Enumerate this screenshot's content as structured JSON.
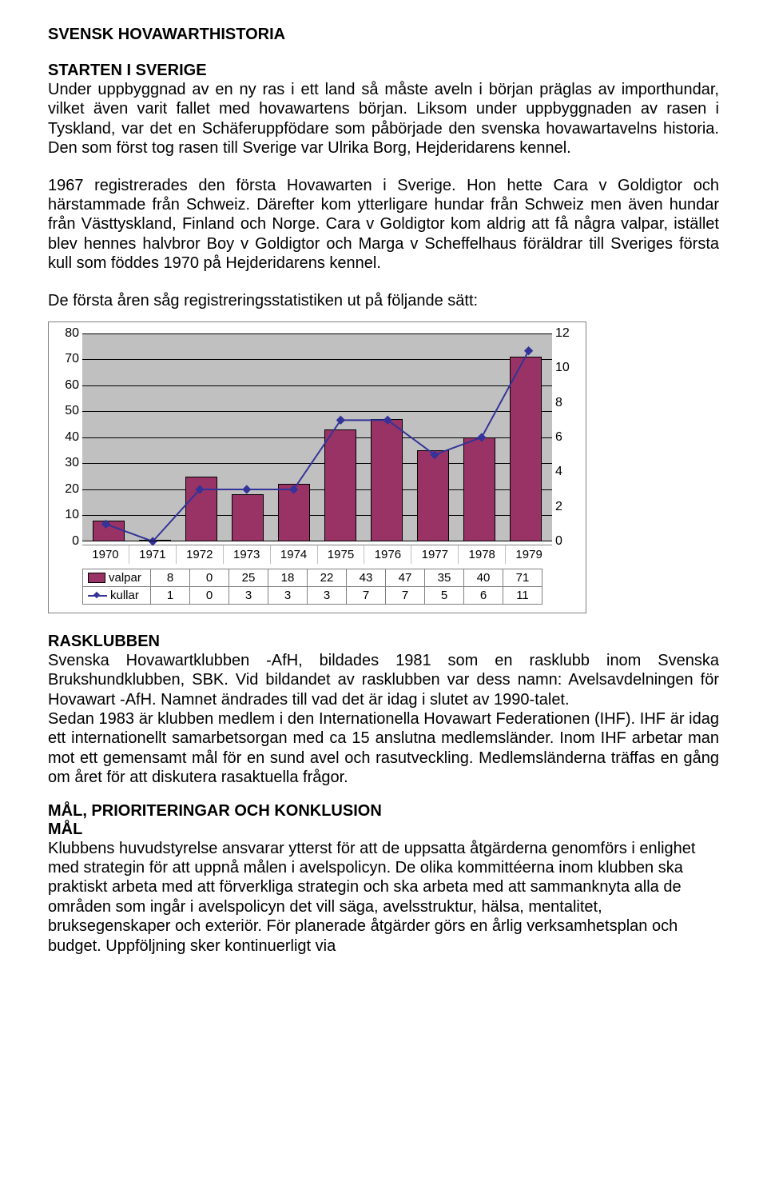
{
  "title": "SVENSK HOVAWARTHISTORIA",
  "section1": {
    "heading": "STARTEN I SVERIGE",
    "para1": "Under uppbyggnad av en ny ras i ett land så måste aveln i början präglas av importhundar, vilket även varit fallet med hovawartens början. Liksom under uppbyggnaden av rasen i Tyskland, var det en Schäferuppfödare som påbörjade den svenska hovawartavelns historia. Den som först tog rasen till Sverige var Ulrika Borg, Hejderidarens kennel.",
    "para2": "1967 registrerades den första Hovawarten i Sverige. Hon hette Cara v Goldigtor och härstammade från Schweiz. Därefter kom ytterligare hundar från Schweiz men även hundar från Västtyskland, Finland och Norge. Cara v Goldigtor kom aldrig att få några valpar, istället blev hennes halvbror Boy v Goldigtor och Marga v Scheffelhaus föräldrar till Sveriges första kull som föddes 1970 på Hejderidarens kennel.",
    "para3": "De första åren såg registreringsstatistiken ut på följande sätt:"
  },
  "chart": {
    "type": "bar+line",
    "background_color": "#c0c0c0",
    "grid_color": "#000000",
    "bar_color": "#993366",
    "line_color": "#333399",
    "marker": "diamond",
    "years": [
      "1970",
      "1971",
      "1972",
      "1973",
      "1974",
      "1975",
      "1976",
      "1977",
      "1978",
      "1979"
    ],
    "valpar": [
      8,
      0,
      25,
      18,
      22,
      43,
      47,
      35,
      40,
      71
    ],
    "kullar": [
      1,
      0,
      3,
      3,
      3,
      7,
      7,
      5,
      6,
      11
    ],
    "left_axis": {
      "min": 0,
      "max": 80,
      "step": 10
    },
    "right_axis": {
      "min": 0,
      "max": 12,
      "step": 2
    },
    "legend": {
      "valpar": "valpar",
      "kullar": "kullar"
    }
  },
  "section2": {
    "heading": "RASKLUBBEN",
    "para1": "Svenska Hovawartklubben -AfH, bildades 1981 som en rasklubb inom Svenska Brukshundklubben, SBK. Vid bildandet av rasklubben var dess namn: Avelsavdelningen för Hovawart -AfH. Namnet ändrades till vad det är idag i slutet av 1990-talet.",
    "para2": "Sedan 1983 är klubben medlem i den Internationella Hovawart Federationen (IHF). IHF är idag ett internationellt samarbetsorgan med ca 15 anslutna medlemsländer. Inom IHF arbetar man mot ett gemensamt mål för en sund avel och rasutveckling. Medlemsländerna träffas en gång om året för att diskutera rasaktuella frågor."
  },
  "section3": {
    "heading": "MÅL, PRIORITERINGAR OCH KONKLUSION",
    "subheading": "MÅL",
    "para1": "Klubbens huvudstyrelse ansvarar ytterst för att de uppsatta åtgärderna genomförs i enlighet med strategin för att uppnå målen i avelspolicyn. De olika kommittéerna inom klubben ska praktiskt arbeta med att förverkliga strategin och ska arbeta med att sammanknyta alla de områden som ingår i avelspolicyn det vill säga, avelsstruktur, hälsa, mentalitet, bruksegenskaper och exteriör. För planerade åtgärder görs en årlig verksamhetsplan och budget. Uppföljning sker kontinuerligt via"
  }
}
